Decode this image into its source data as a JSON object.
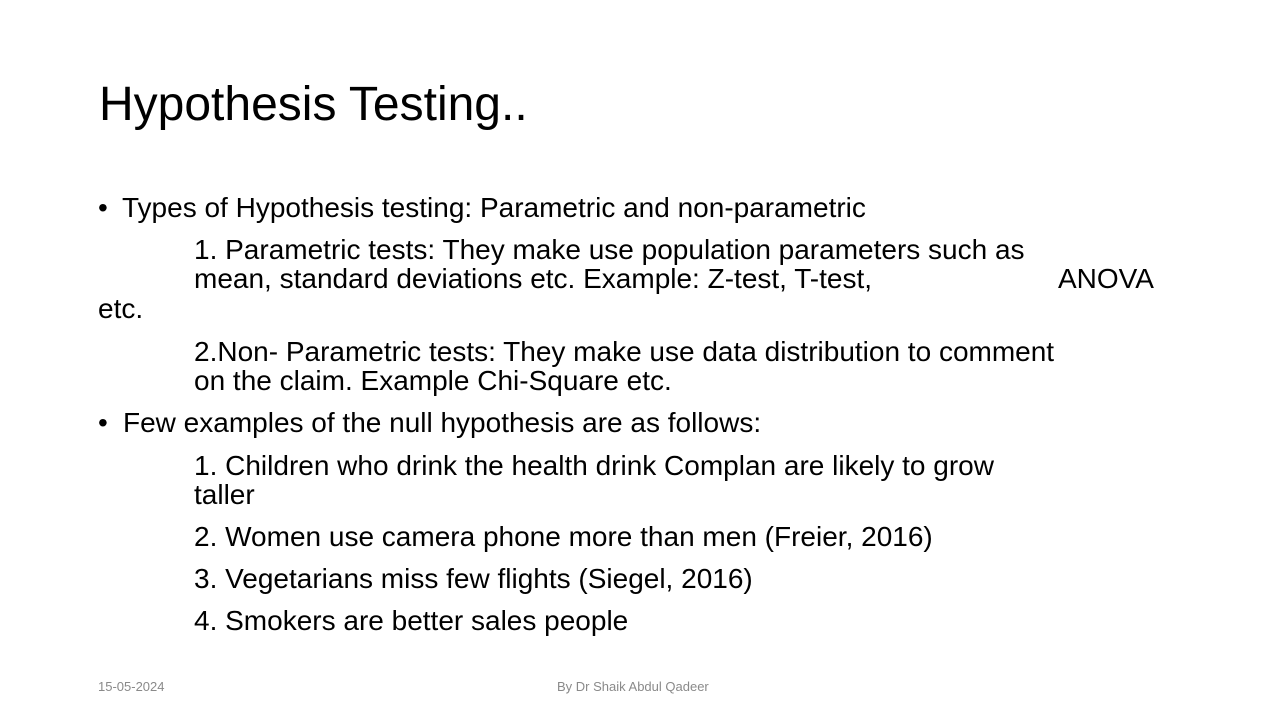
{
  "slide": {
    "title": "Hypothesis Testing..",
    "bullet_glyph": "•",
    "bullets": [
      {
        "text": "Types of Hypothesis testing: Parametric and non-parametric",
        "items": [
          {
            "lines": [
              "1. Parametric tests: They make use population parameters such as",
              "mean, standard deviations etc. Example: Z-test, T-test,",
              "ANOVA",
              "etc."
            ]
          },
          {
            "lines": [
              "2.Non- Parametric tests: They make use data distribution to comment",
              "on the claim. Example Chi-Square etc."
            ]
          }
        ]
      },
      {
        "text": "Few examples of the null hypothesis are as follows:",
        "items": [
          {
            "lines": [
              "1. Children who drink the health drink Complan are likely to grow",
              "taller"
            ]
          },
          {
            "lines": [
              "2. Women use camera phone more than men (Freier, 2016)"
            ]
          },
          {
            "lines": [
              "3. Vegetarians miss few flights (Siegel, 2016)"
            ]
          },
          {
            "lines": [
              "4. Smokers are better sales people"
            ]
          }
        ]
      }
    ],
    "footer": {
      "date": "15-05-2024",
      "author": "By Dr Shaik Abdul Qadeer"
    }
  }
}
